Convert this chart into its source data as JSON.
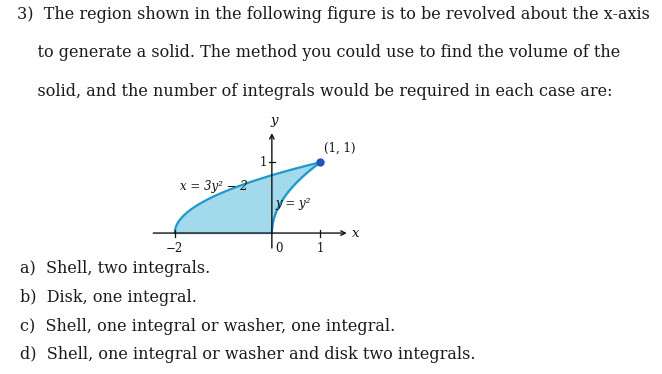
{
  "title_line1": "3)  The region shown in the following figure is to be revolved about the x-axis",
  "title_line2": "    to generate a solid. The method you could use to find the volume of the",
  "title_line3": "    solid, and the number of integrals would be required in each case are:",
  "answer_a": "a)  Shell, two integrals.",
  "answer_b": "b)  Disk, one integral.",
  "answer_c": "c)  Shell, one integral or washer, one integral.",
  "answer_d": "d)  Shell, one integral or washer and disk two integrals.",
  "curve1_label": "x = 3y² − 2",
  "curve2_label": "y = y²",
  "point_label": "(1, 1)",
  "x_axis_label": "x",
  "y_axis_label": "y",
  "tick_neg2": "−2",
  "tick_0": "0",
  "tick_1": "1",
  "fill_color": "#93d4e8",
  "fill_alpha": 0.85,
  "curve_color": "#2299cc",
  "point_color": "#2255bb",
  "text_color": "#1a1a1a",
  "axis_color": "#111111",
  "bg_color": "#ffffff",
  "font_size_title": 11.5,
  "font_size_answers": 11.5,
  "font_size_graph": 8.5
}
